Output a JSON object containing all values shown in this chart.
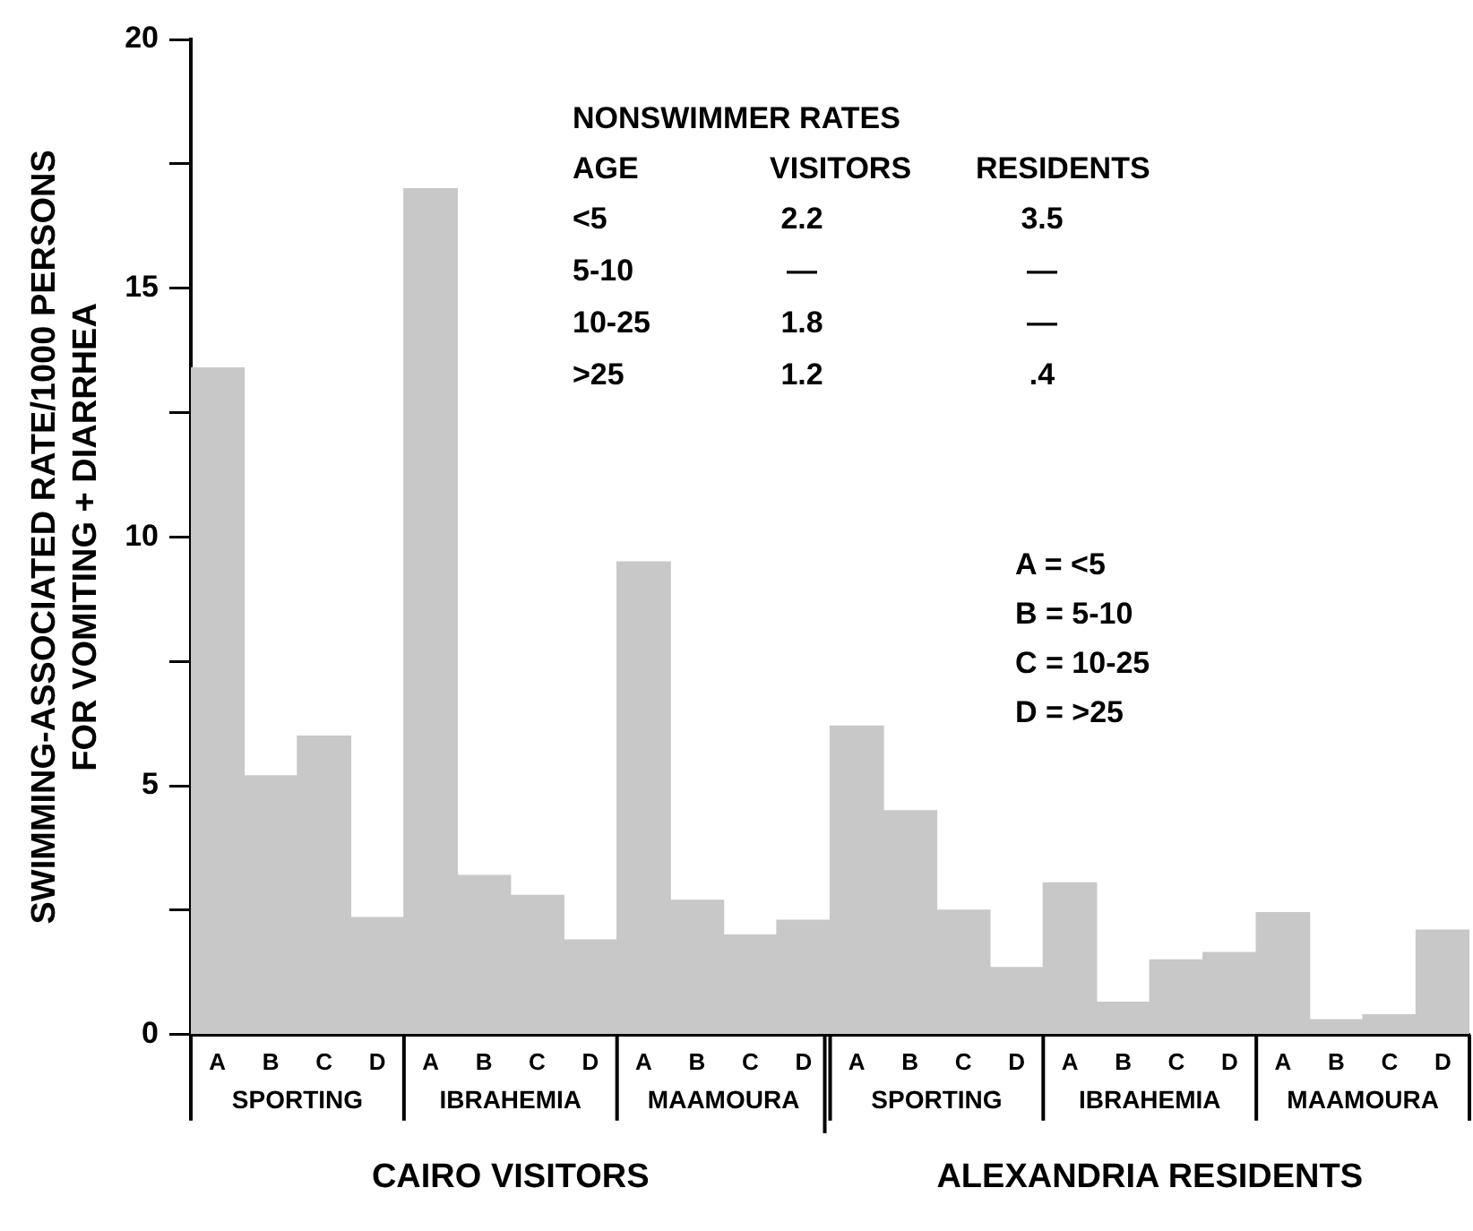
{
  "chart_data": {
    "type": "bar",
    "ylabel": "SWIMMING-ASSOCIATED RATE/1000 PERSONS\nFOR VOMITING + DIARRHEA",
    "categories": [
      "A",
      "B",
      "C",
      "D",
      "A",
      "B",
      "C",
      "D",
      "A",
      "B",
      "C",
      "D",
      "A",
      "B",
      "C",
      "D",
      "A",
      "B",
      "C",
      "D",
      "A",
      "B",
      "C",
      "D"
    ],
    "values": [
      13.4,
      5.2,
      6.0,
      2.35,
      17.0,
      3.2,
      2.8,
      1.9,
      9.5,
      2.7,
      2.0,
      2.3,
      6.2,
      4.5,
      2.5,
      1.35,
      3.05,
      0.65,
      1.5,
      1.65,
      2.45,
      0.3,
      0.4,
      2.1
    ],
    "color": "#c8c8c8",
    "ylim": [
      0,
      20
    ],
    "yticks": [
      0,
      {
        "value": 2.5,
        "label": null
      },
      5,
      {
        "value": 7.5,
        "label": null
      },
      10,
      {
        "value": 12.5,
        "label": null
      },
      15,
      {
        "value": 17.5,
        "label": null
      },
      20
    ],
    "annotations": [
      "SPORTING",
      "IBRAHEMIA",
      "MAAMOURA",
      "SPORTING",
      "IBRAHEMIA",
      "MAAMOURA",
      "CAIRO VISITORS",
      "ALEXANDRIA RESIDENTS",
      "NONSWIMMER RATES",
      "AGE",
      "VISITORS",
      "RESIDENTS",
      "<5",
      "2.2",
      "3.5",
      "5-10",
      "—",
      "—",
      "10-25",
      "1.8",
      "—",
      ">25",
      "1.2",
      ".4",
      "A = <5",
      "B = 5-10",
      "C = 10-25",
      "D = >25"
    ]
  }
}
